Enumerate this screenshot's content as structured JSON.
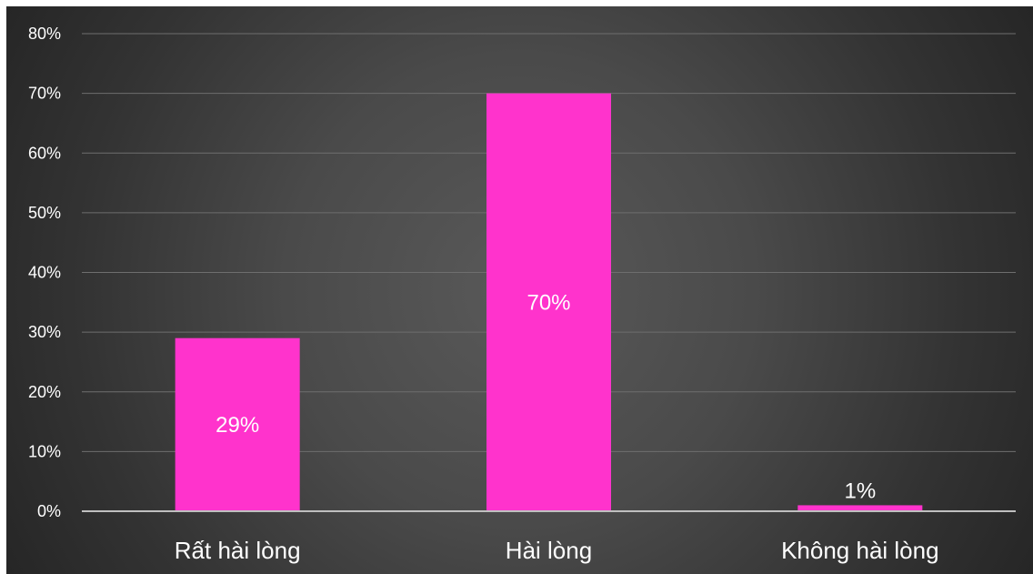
{
  "chart_data": {
    "type": "bar",
    "title": "",
    "xlabel": "",
    "ylabel": "",
    "categories": [
      "Rất hài lòng",
      "Hài lòng",
      "Không hài lòng"
    ],
    "values": [
      29,
      70,
      1
    ],
    "data_labels": [
      "29%",
      "70%",
      "1%"
    ],
    "ylim": [
      0,
      80
    ],
    "y_ticks": [
      "0%",
      "10%",
      "20%",
      "30%",
      "40%",
      "50%",
      "60%",
      "70%",
      "80%"
    ],
    "grid": true,
    "legend": "none",
    "colors": {
      "bar": "#ff33cc",
      "background_center": "#595959",
      "background_edge": "#262626",
      "text": "#ffffff",
      "gridline": "#6e6e6e",
      "axis": "#bfbfbf"
    }
  }
}
